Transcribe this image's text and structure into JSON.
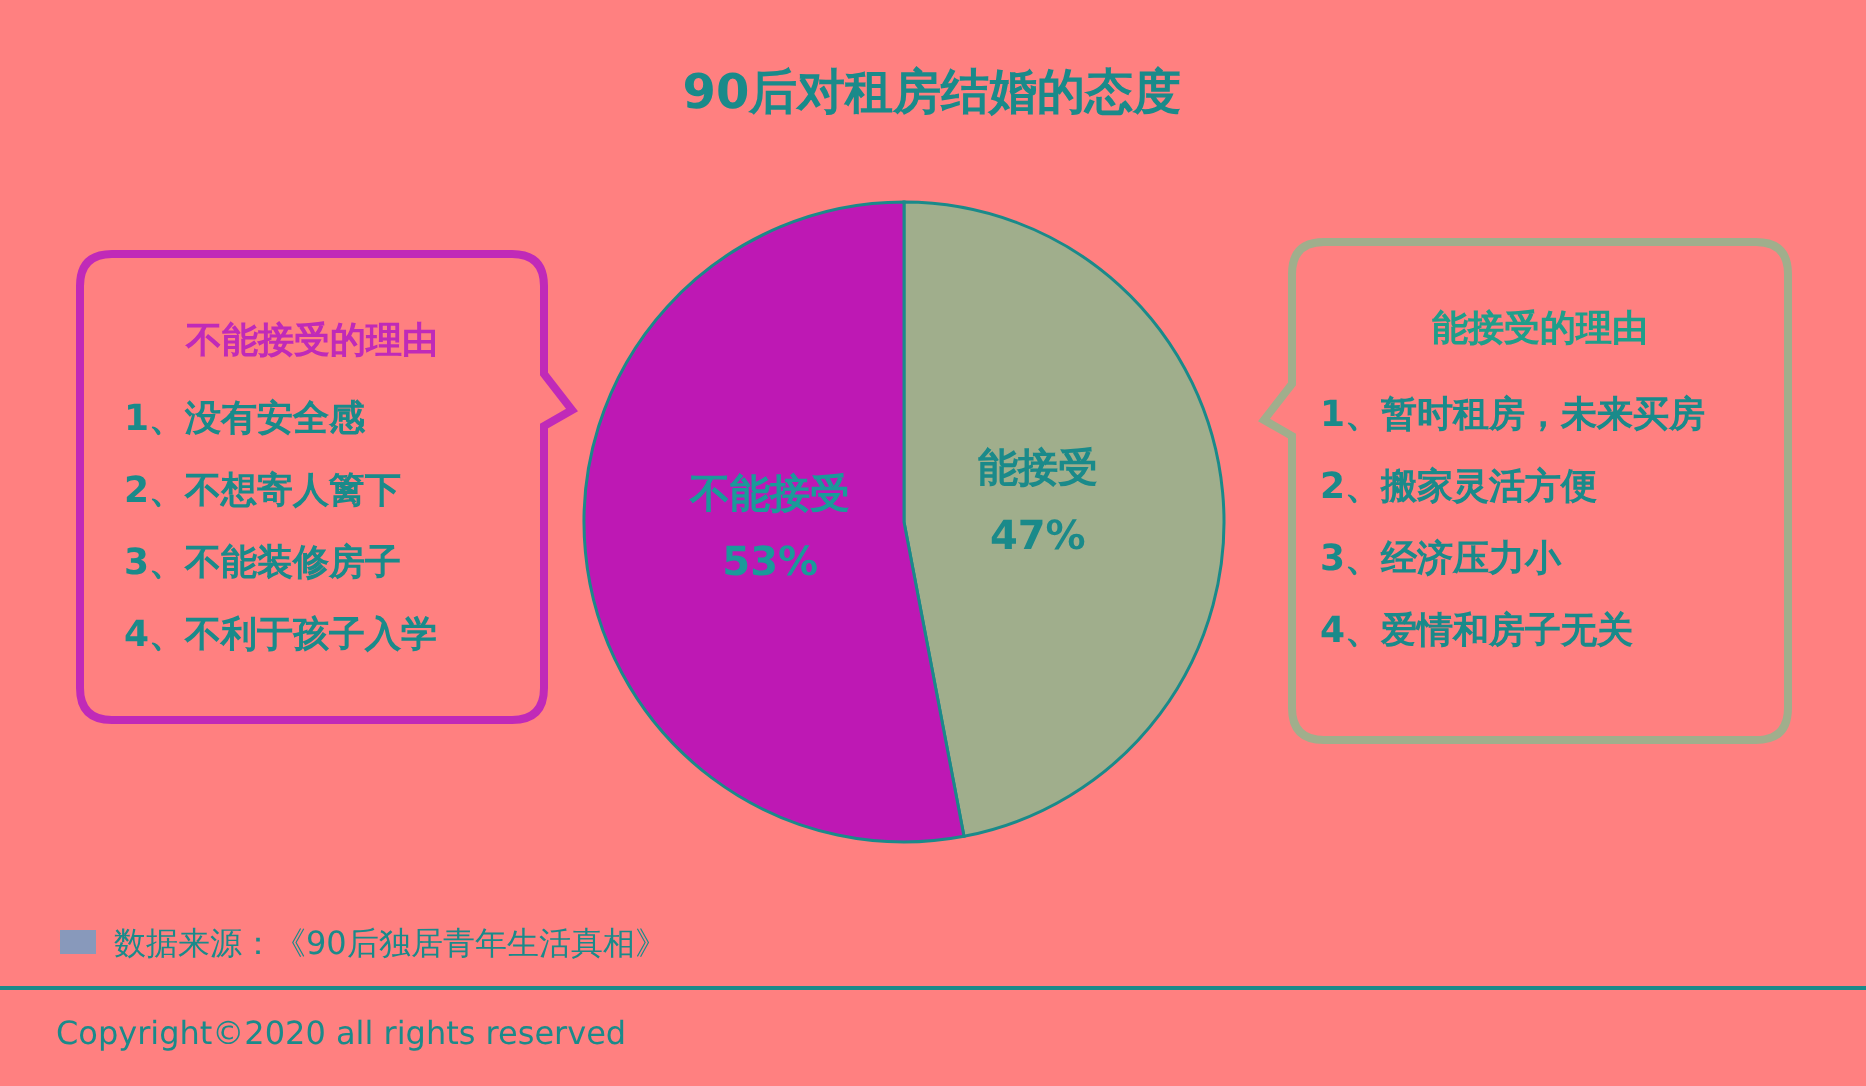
{
  "chart_data": {
    "type": "pie",
    "title": "90后对租房结婚的态度",
    "categories": [
      "能接受",
      "不能接受"
    ],
    "values": [
      47,
      53
    ],
    "colors": [
      "#a0ae8c",
      "#be18b4"
    ],
    "value_labels": [
      "47%",
      "53%"
    ],
    "annotations": [
      "不能接受的理由",
      "1、没有安全感",
      "2、不想寄人篱下",
      "3、不能装修房子",
      "4、不利于孩子入学",
      "能接受的理由",
      "1、暂时租房，未来买房",
      "2、搬家灵活方便",
      "3、经济压力小",
      "4、爱情和房子无关",
      "数据来源：《90后独居青年生活真相》",
      "Copyright©2020 all rights reserved"
    ]
  }
}
